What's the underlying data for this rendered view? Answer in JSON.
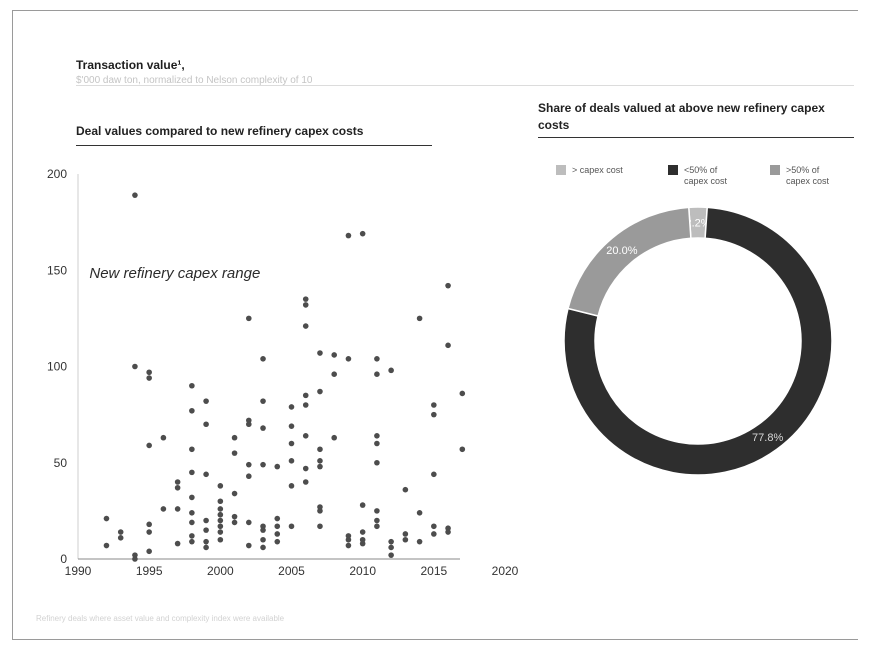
{
  "header": {
    "title": "Transaction value¹,",
    "subtitle": "$'000 daw ton, normalized to Nelson complexity of 10"
  },
  "footer": {
    "note": "Refinery deals where asset value and complexity index were available"
  },
  "colors": {
    "dot": "#4d4d4d",
    "dark": "#2e2e2e",
    "mid": "#9a9a9a",
    "light": "#bdbdbd"
  },
  "chart_data": [
    {
      "type": "scatter",
      "title": "Deal values compared to new refinery capex costs",
      "annotation": "New refinery capex range",
      "xlim": [
        1990,
        2020
      ],
      "ylim": [
        0,
        200
      ],
      "x_ticks": [
        "1990",
        "1995",
        "2000",
        "2005",
        "2010",
        "2015",
        "2020"
      ],
      "y_ticks": [
        "0",
        "50",
        "100",
        "150",
        "200"
      ],
      "grid": false,
      "points": [
        [
          1992,
          21
        ],
        [
          1992,
          7
        ],
        [
          1993,
          14
        ],
        [
          1993,
          11
        ],
        [
          1994,
          189
        ],
        [
          1994,
          100
        ],
        [
          1994,
          2
        ],
        [
          1994,
          0
        ],
        [
          1995,
          97
        ],
        [
          1995,
          94
        ],
        [
          1995,
          59
        ],
        [
          1995,
          18
        ],
        [
          1995,
          14
        ],
        [
          1995,
          4
        ],
        [
          1996,
          63
        ],
        [
          1996,
          26
        ],
        [
          1997,
          40
        ],
        [
          1997,
          37
        ],
        [
          1997,
          26
        ],
        [
          1997,
          8
        ],
        [
          1998,
          90
        ],
        [
          1998,
          77
        ],
        [
          1998,
          57
        ],
        [
          1998,
          45
        ],
        [
          1998,
          32
        ],
        [
          1998,
          24
        ],
        [
          1998,
          19
        ],
        [
          1998,
          12
        ],
        [
          1998,
          9
        ],
        [
          1999,
          82
        ],
        [
          1999,
          70
        ],
        [
          1999,
          44
        ],
        [
          1999,
          20
        ],
        [
          1999,
          15
        ],
        [
          1999,
          9
        ],
        [
          1999,
          6
        ],
        [
          2000,
          38
        ],
        [
          2000,
          30
        ],
        [
          2000,
          26
        ],
        [
          2000,
          23
        ],
        [
          2000,
          20
        ],
        [
          2000,
          17
        ],
        [
          2000,
          14
        ],
        [
          2000,
          10
        ],
        [
          2001,
          63
        ],
        [
          2001,
          55
        ],
        [
          2001,
          34
        ],
        [
          2001,
          22
        ],
        [
          2001,
          19
        ],
        [
          2002,
          125
        ],
        [
          2002,
          72
        ],
        [
          2002,
          70
        ],
        [
          2002,
          49
        ],
        [
          2002,
          43
        ],
        [
          2002,
          19
        ],
        [
          2002,
          7
        ],
        [
          2003,
          104
        ],
        [
          2003,
          82
        ],
        [
          2003,
          68
        ],
        [
          2003,
          49
        ],
        [
          2003,
          17
        ],
        [
          2003,
          15
        ],
        [
          2003,
          10
        ],
        [
          2003,
          6
        ],
        [
          2004,
          48
        ],
        [
          2004,
          21
        ],
        [
          2004,
          17
        ],
        [
          2004,
          13
        ],
        [
          2004,
          9
        ],
        [
          2005,
          79
        ],
        [
          2005,
          69
        ],
        [
          2005,
          60
        ],
        [
          2005,
          51
        ],
        [
          2005,
          38
        ],
        [
          2005,
          17
        ],
        [
          2006,
          135
        ],
        [
          2006,
          132
        ],
        [
          2006,
          121
        ],
        [
          2006,
          85
        ],
        [
          2006,
          80
        ],
        [
          2006,
          64
        ],
        [
          2006,
          47
        ],
        [
          2006,
          40
        ],
        [
          2007,
          107
        ],
        [
          2007,
          87
        ],
        [
          2007,
          57
        ],
        [
          2007,
          51
        ],
        [
          2007,
          48
        ],
        [
          2007,
          27
        ],
        [
          2007,
          25
        ],
        [
          2007,
          17
        ],
        [
          2008,
          106
        ],
        [
          2008,
          96
        ],
        [
          2008,
          63
        ],
        [
          2009,
          168
        ],
        [
          2009,
          104
        ],
        [
          2009,
          12
        ],
        [
          2009,
          10
        ],
        [
          2009,
          7
        ],
        [
          2010,
          169
        ],
        [
          2010,
          28
        ],
        [
          2010,
          14
        ],
        [
          2010,
          10
        ],
        [
          2010,
          8
        ],
        [
          2011,
          104
        ],
        [
          2011,
          96
        ],
        [
          2011,
          64
        ],
        [
          2011,
          60
        ],
        [
          2011,
          50
        ],
        [
          2011,
          25
        ],
        [
          2011,
          20
        ],
        [
          2011,
          17
        ],
        [
          2012,
          98
        ],
        [
          2012,
          9
        ],
        [
          2012,
          6
        ],
        [
          2012,
          2
        ],
        [
          2013,
          36
        ],
        [
          2013,
          13
        ],
        [
          2013,
          10
        ],
        [
          2014,
          125
        ],
        [
          2014,
          24
        ],
        [
          2014,
          9
        ],
        [
          2015,
          80
        ],
        [
          2015,
          75
        ],
        [
          2015,
          44
        ],
        [
          2015,
          17
        ],
        [
          2015,
          13
        ],
        [
          2016,
          142
        ],
        [
          2016,
          111
        ],
        [
          2016,
          16
        ],
        [
          2016,
          14
        ],
        [
          2017,
          86
        ],
        [
          2017,
          57
        ]
      ]
    },
    {
      "type": "pie",
      "title": "Share of deals valued at above new refinery capex costs",
      "legend_position": "top",
      "slices": [
        {
          "label": "> capex cost",
          "value": 2.2,
          "color": "#bdbdbd",
          "data_label": "2.2%"
        },
        {
          "label": "<50% of capex cost",
          "value": 77.8,
          "color": "#2e2e2e",
          "data_label": "77.8%"
        },
        {
          "label": ">50% of capex cost",
          "value": 20.0,
          "color": "#9a9a9a",
          "data_label": "20.0%"
        }
      ]
    }
  ]
}
